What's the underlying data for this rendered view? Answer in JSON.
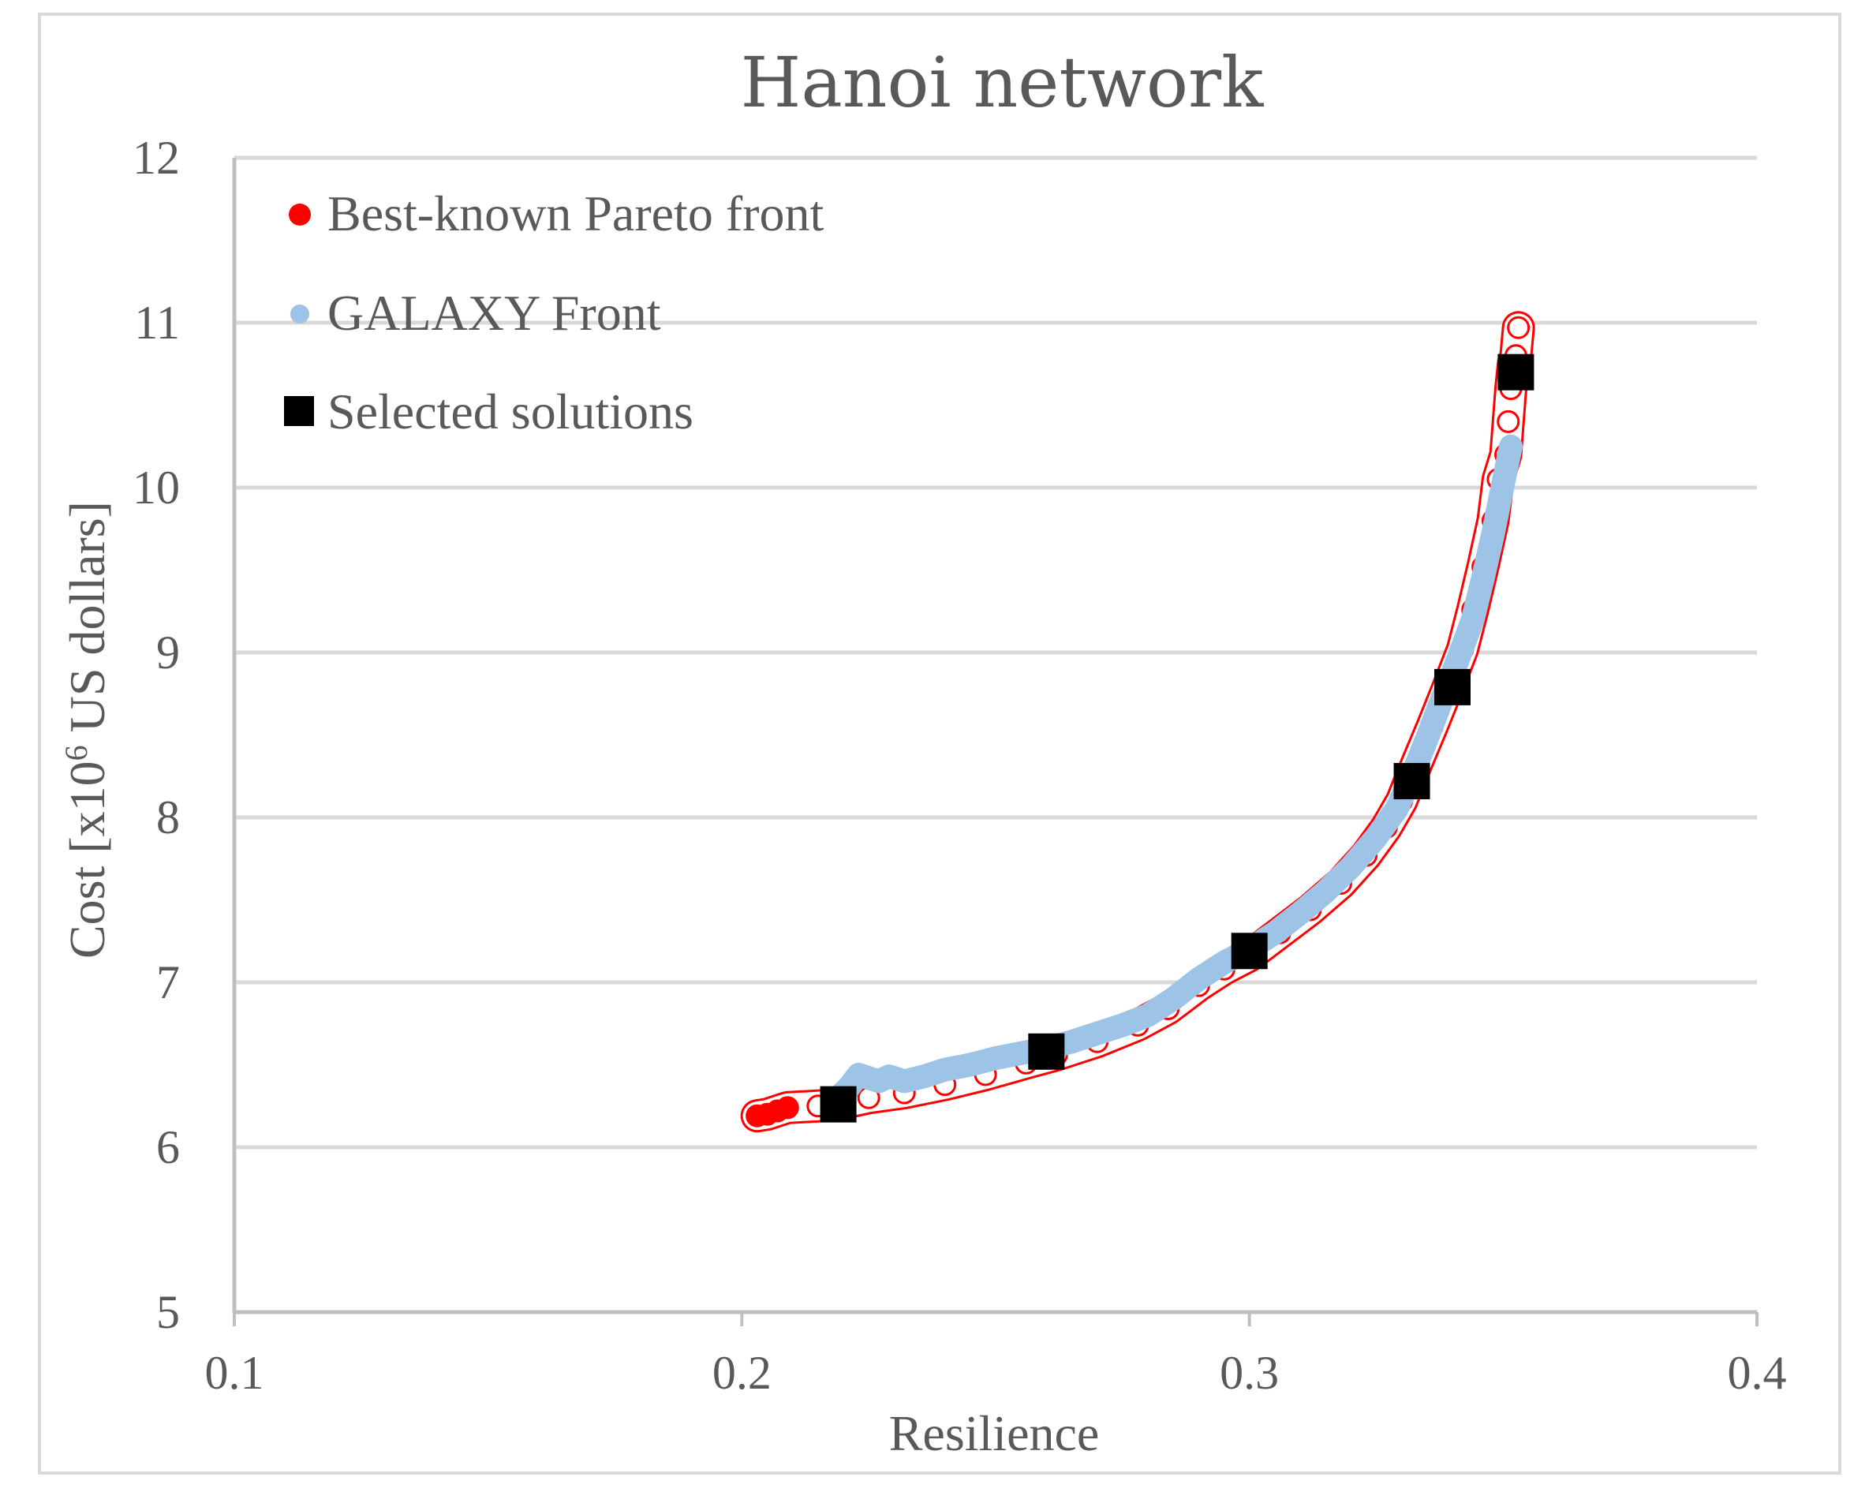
{
  "chart_data": {
    "type": "scatter",
    "title": "Hanoi network",
    "xlabel": "Resilience",
    "ylabel_prefix": "Cost [x10",
    "ylabel_sup": "6",
    "ylabel_suffix": " US dollars]",
    "xlim": [
      0.1,
      0.4
    ],
    "ylim": [
      5,
      12
    ],
    "xticks": [
      "0.1",
      "0.2",
      "0.3",
      "0.4"
    ],
    "yticks": [
      "5",
      "6",
      "7",
      "8",
      "9",
      "10",
      "11",
      "12"
    ],
    "grid": true,
    "legend_position": "top-left",
    "colors": {
      "pareto": "#ff0000",
      "galaxy": "#9dc3e6",
      "selected": "#000000",
      "grid": "#d9d9d9",
      "axis": "#bfbfbf",
      "text": "#595959"
    },
    "series": [
      {
        "name": "Best-known Pareto front",
        "marker": "circle",
        "x": [
          0.203,
          0.205,
          0.207,
          0.209,
          0.215,
          0.219,
          0.225,
          0.232,
          0.24,
          0.248,
          0.256,
          0.262,
          0.27,
          0.278,
          0.284,
          0.29,
          0.295,
          0.3,
          0.306,
          0.312,
          0.318,
          0.323,
          0.327,
          0.33,
          0.333,
          0.336,
          0.339,
          0.342,
          0.344,
          0.346,
          0.348,
          0.349,
          0.3505,
          0.351,
          0.3515,
          0.352,
          0.3525,
          0.353
        ],
        "y": [
          6.19,
          6.2,
          6.22,
          6.24,
          6.25,
          6.26,
          6.3,
          6.33,
          6.38,
          6.44,
          6.51,
          6.56,
          6.64,
          6.74,
          6.84,
          6.98,
          7.08,
          7.16,
          7.3,
          7.44,
          7.6,
          7.77,
          7.94,
          8.1,
          8.33,
          8.55,
          8.78,
          9.02,
          9.26,
          9.52,
          9.8,
          10.05,
          10.2,
          10.4,
          10.6,
          10.75,
          10.8,
          10.97
        ]
      },
      {
        "name": "GALAXY Front",
        "marker": "circle",
        "x": [
          0.219,
          0.221,
          0.223,
          0.225,
          0.227,
          0.229,
          0.232,
          0.236,
          0.24,
          0.245,
          0.25,
          0.255,
          0.26,
          0.265,
          0.27,
          0.275,
          0.28,
          0.285,
          0.29,
          0.295,
          0.3,
          0.305,
          0.31,
          0.315,
          0.32,
          0.325,
          0.329,
          0.332,
          0.335,
          0.338,
          0.341,
          0.344,
          0.346,
          0.348,
          0.3495,
          0.3505,
          0.3515
        ],
        "y": [
          6.3,
          6.36,
          6.44,
          6.42,
          6.4,
          6.43,
          6.4,
          6.43,
          6.47,
          6.5,
          6.54,
          6.57,
          6.6,
          6.64,
          6.69,
          6.74,
          6.8,
          6.9,
          7.02,
          7.12,
          7.2,
          7.3,
          7.42,
          7.55,
          7.7,
          7.88,
          8.05,
          8.25,
          8.48,
          8.72,
          8.95,
          9.2,
          9.45,
          9.72,
          9.95,
          10.1,
          10.25
        ]
      },
      {
        "name": "Selected solutions",
        "marker": "square",
        "x": [
          0.219,
          0.26,
          0.3,
          0.332,
          0.34,
          0.3525
        ],
        "y": [
          6.26,
          6.58,
          7.19,
          8.22,
          8.79,
          10.7
        ]
      }
    ]
  }
}
